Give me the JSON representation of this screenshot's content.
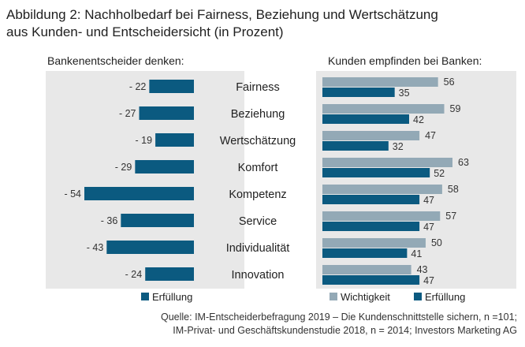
{
  "title_line1": "Abbildung 2: Nachholbedarf bei Fairness, Beziehung und Wertschätzung",
  "title_line2": "aus Kunden- und Entscheidersicht (in Prozent)",
  "source_line1": "Quelle: IM-Entscheiderbefragung 2019 – Die Kundenschnittstelle sichern, n =101;",
  "source_line2": "IM-Privat- und Geschäftskundenstudie 2018, n = 2014; Investors Marketing AG",
  "colors": {
    "dark": "#0b5a80",
    "light": "#93a9b6",
    "panel": "#e8e8e8"
  },
  "chart_data": [
    {
      "type": "bar",
      "orientation": "horizontal",
      "subtitle": "Bankenentscheider denken:",
      "categories": [
        "Fairness",
        "Beziehung",
        "Wertschätzung",
        "Komfort",
        "Kompetenz",
        "Service",
        "Individualität",
        "Innovation"
      ],
      "series": [
        {
          "name": "Erfüllung",
          "values": [
            -22,
            -27,
            -19,
            -29,
            -54,
            -36,
            -43,
            -24
          ],
          "labels": [
            "- 22",
            "- 27",
            "- 19",
            "- 29",
            "- 54",
            "- 36",
            "- 43",
            "- 24"
          ]
        }
      ],
      "legend": "bottom-left"
    },
    {
      "type": "bar",
      "orientation": "horizontal",
      "subtitle": "Kunden empfinden bei Banken:",
      "categories": [
        "Fairness",
        "Beziehung",
        "Wertschätzung",
        "Komfort",
        "Kompetenz",
        "Service",
        "Individualität",
        "Innovation"
      ],
      "series": [
        {
          "name": "Wichtigkeit",
          "values": [
            56,
            59,
            47,
            63,
            58,
            57,
            50,
            43
          ]
        },
        {
          "name": "Erfüllung",
          "values": [
            35,
            42,
            32,
            52,
            47,
            47,
            41,
            47
          ]
        }
      ],
      "legend": "bottom-right"
    }
  ]
}
